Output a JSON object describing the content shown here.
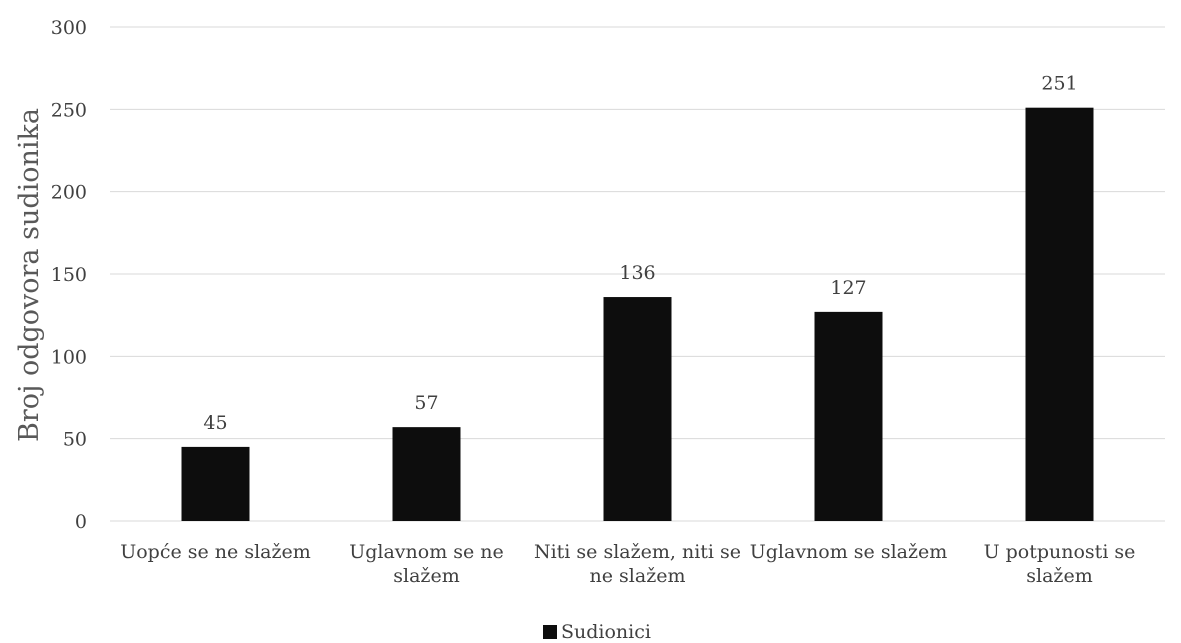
{
  "chart_data": {
    "type": "bar",
    "title": "",
    "xlabel": "",
    "ylabel": "Broj odgovora sudionika",
    "ylim": [
      0,
      300
    ],
    "yticks": [
      0,
      50,
      100,
      150,
      200,
      250,
      300
    ],
    "grid": true,
    "legend_position": "bottom",
    "categories": [
      [
        "Uopće se ne slažem"
      ],
      [
        "Uglavnom se ne",
        "slažem"
      ],
      [
        "Niti se slažem, niti se",
        "ne slažem"
      ],
      [
        "Uglavnom se slažem"
      ],
      [
        "U potpunosti se",
        "slažem"
      ]
    ],
    "series": [
      {
        "name": "Sudionici",
        "values": [
          45,
          57,
          136,
          127,
          251
        ],
        "color": "#0d0d0d"
      }
    ]
  }
}
